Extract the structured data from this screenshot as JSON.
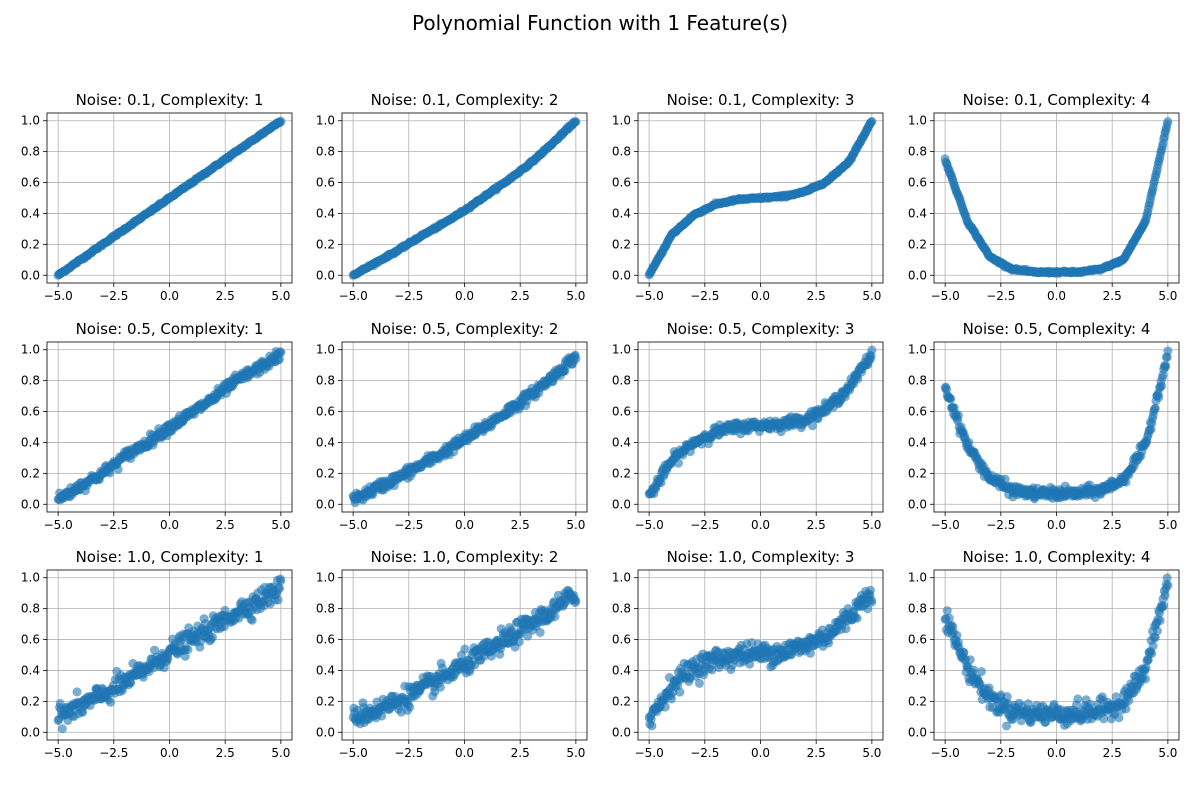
{
  "figure": {
    "title": "Polynomial Function with 1 Feature(s)"
  },
  "style": {
    "point_color": "#1f77b4",
    "grid_color": "#b0b0b0",
    "axis_color": "#000000"
  },
  "chart_data": [
    {
      "type": "scatter",
      "title": "Noise: 0.1, Complexity: 1",
      "noise": 0.1,
      "complexity": 1,
      "xlim": [
        -5.5,
        5.5
      ],
      "ylim": [
        -0.05,
        1.05
      ],
      "xticks": [
        -5.0,
        -2.5,
        0.0,
        2.5,
        5.0
      ],
      "xticklabels": [
        "−5.0",
        "−2.5",
        "0.0",
        "2.5",
        "5.0"
      ],
      "yticks": [
        0.0,
        0.2,
        0.4,
        0.6,
        0.8,
        1.0
      ],
      "yticklabels": [
        "0.0",
        "0.2",
        "0.4",
        "0.6",
        "0.8",
        "1.0"
      ],
      "grid": true,
      "x": [
        -5.0,
        -4.0,
        -3.0,
        -2.0,
        -1.0,
        0.0,
        1.0,
        2.0,
        3.0,
        4.0,
        5.0
      ],
      "y": [
        0.0,
        0.1,
        0.2,
        0.3,
        0.4,
        0.5,
        0.6,
        0.7,
        0.8,
        0.9,
        1.0
      ]
    },
    {
      "type": "scatter",
      "title": "Noise: 0.1, Complexity: 2",
      "noise": 0.1,
      "complexity": 2,
      "xlim": [
        -5.5,
        5.5
      ],
      "ylim": [
        -0.05,
        1.05
      ],
      "xticks": [
        -5.0,
        -2.5,
        0.0,
        2.5,
        5.0
      ],
      "xticklabels": [
        "−5.0",
        "−2.5",
        "0.0",
        "2.5",
        "5.0"
      ],
      "yticks": [
        0.0,
        0.2,
        0.4,
        0.6,
        0.8,
        1.0
      ],
      "yticklabels": [
        "0.0",
        "0.2",
        "0.4",
        "0.6",
        "0.8",
        "1.0"
      ],
      "grid": true,
      "x": [
        -5.0,
        -4.0,
        -3.0,
        -2.0,
        -1.0,
        0.0,
        1.0,
        2.0,
        3.0,
        4.0,
        5.0
      ],
      "y": [
        0.0,
        0.08,
        0.16,
        0.25,
        0.33,
        0.42,
        0.52,
        0.62,
        0.73,
        0.86,
        1.0
      ]
    },
    {
      "type": "scatter",
      "title": "Noise: 0.1, Complexity: 3",
      "noise": 0.1,
      "complexity": 3,
      "xlim": [
        -5.5,
        5.5
      ],
      "ylim": [
        -0.05,
        1.05
      ],
      "xticks": [
        -5.0,
        -2.5,
        0.0,
        2.5,
        5.0
      ],
      "xticklabels": [
        "−5.0",
        "−2.5",
        "0.0",
        "2.5",
        "5.0"
      ],
      "yticks": [
        0.0,
        0.2,
        0.4,
        0.6,
        0.8,
        1.0
      ],
      "yticklabels": [
        "0.0",
        "0.2",
        "0.4",
        "0.6",
        "0.8",
        "1.0"
      ],
      "grid": true,
      "x": [
        -5.0,
        -4.0,
        -3.0,
        -2.0,
        -1.0,
        0.0,
        1.0,
        2.0,
        3.0,
        4.0,
        5.0
      ],
      "y": [
        0.0,
        0.26,
        0.39,
        0.46,
        0.49,
        0.5,
        0.51,
        0.54,
        0.61,
        0.74,
        1.0
      ]
    },
    {
      "type": "scatter",
      "title": "Noise: 0.1, Complexity: 4",
      "noise": 0.1,
      "complexity": 4,
      "xlim": [
        -5.5,
        5.5
      ],
      "ylim": [
        -0.05,
        1.05
      ],
      "xticks": [
        -5.0,
        -2.5,
        0.0,
        2.5,
        5.0
      ],
      "xticklabels": [
        "−5.0",
        "−2.5",
        "0.0",
        "2.5",
        "5.0"
      ],
      "yticks": [
        0.0,
        0.2,
        0.4,
        0.6,
        0.8,
        1.0
      ],
      "yticklabels": [
        "0.0",
        "0.2",
        "0.4",
        "0.6",
        "0.8",
        "1.0"
      ],
      "grid": true,
      "x": [
        -5.0,
        -4.0,
        -3.0,
        -2.0,
        -1.0,
        0.0,
        1.0,
        2.0,
        3.0,
        4.0,
        5.0
      ],
      "y": [
        0.75,
        0.35,
        0.12,
        0.04,
        0.02,
        0.02,
        0.02,
        0.04,
        0.1,
        0.35,
        1.0
      ]
    },
    {
      "type": "scatter",
      "title": "Noise: 0.5, Complexity: 1",
      "noise": 0.5,
      "complexity": 1,
      "xlim": [
        -5.5,
        5.5
      ],
      "ylim": [
        -0.05,
        1.05
      ],
      "xticks": [
        -5.0,
        -2.5,
        0.0,
        2.5,
        5.0
      ],
      "xticklabels": [
        "−5.0",
        "−2.5",
        "0.0",
        "2.5",
        "5.0"
      ],
      "yticks": [
        0.0,
        0.2,
        0.4,
        0.6,
        0.8,
        1.0
      ],
      "yticklabels": [
        "0.0",
        "0.2",
        "0.4",
        "0.6",
        "0.8",
        "1.0"
      ],
      "grid": true,
      "x": [
        -5.0,
        -4.0,
        -3.0,
        -2.0,
        -1.0,
        0.0,
        1.0,
        2.0,
        3.0,
        4.0,
        5.0
      ],
      "y": [
        0.03,
        0.12,
        0.2,
        0.31,
        0.4,
        0.5,
        0.59,
        0.69,
        0.8,
        0.88,
        0.97
      ]
    },
    {
      "type": "scatter",
      "title": "Noise: 0.5, Complexity: 2",
      "noise": 0.5,
      "complexity": 2,
      "xlim": [
        -5.5,
        5.5
      ],
      "ylim": [
        -0.05,
        1.05
      ],
      "xticks": [
        -5.0,
        -2.5,
        0.0,
        2.5,
        5.0
      ],
      "xticklabels": [
        "−5.0",
        "−2.5",
        "0.0",
        "2.5",
        "5.0"
      ],
      "yticks": [
        0.0,
        0.2,
        0.4,
        0.6,
        0.8,
        1.0
      ],
      "yticklabels": [
        "0.0",
        "0.2",
        "0.4",
        "0.6",
        "0.8",
        "1.0"
      ],
      "grid": true,
      "x": [
        -5.0,
        -4.0,
        -3.0,
        -2.0,
        -1.0,
        0.0,
        1.0,
        2.0,
        3.0,
        4.0,
        5.0
      ],
      "y": [
        0.03,
        0.1,
        0.17,
        0.25,
        0.33,
        0.42,
        0.51,
        0.61,
        0.71,
        0.83,
        0.96
      ]
    },
    {
      "type": "scatter",
      "title": "Noise: 0.5, Complexity: 3",
      "noise": 0.5,
      "complexity": 3,
      "xlim": [
        -5.5,
        5.5
      ],
      "ylim": [
        -0.05,
        1.05
      ],
      "xticks": [
        -5.0,
        -2.5,
        0.0,
        2.5,
        5.0
      ],
      "xticklabels": [
        "−5.0",
        "−2.5",
        "0.0",
        "2.5",
        "5.0"
      ],
      "yticks": [
        0.0,
        0.2,
        0.4,
        0.6,
        0.8,
        1.0
      ],
      "yticklabels": [
        "0.0",
        "0.2",
        "0.4",
        "0.6",
        "0.8",
        "1.0"
      ],
      "grid": true,
      "x": [
        -5.0,
        -4.0,
        -3.0,
        -2.0,
        -1.0,
        0.0,
        1.0,
        2.0,
        3.0,
        4.0,
        5.0
      ],
      "y": [
        0.05,
        0.28,
        0.4,
        0.47,
        0.5,
        0.51,
        0.52,
        0.55,
        0.62,
        0.76,
        0.97
      ]
    },
    {
      "type": "scatter",
      "title": "Noise: 0.5, Complexity: 4",
      "noise": 0.5,
      "complexity": 4,
      "xlim": [
        -5.5,
        5.5
      ],
      "ylim": [
        -0.05,
        1.05
      ],
      "xticks": [
        -5.0,
        -2.5,
        0.0,
        2.5,
        5.0
      ],
      "xticklabels": [
        "−5.0",
        "−2.5",
        "0.0",
        "2.5",
        "5.0"
      ],
      "yticks": [
        0.0,
        0.2,
        0.4,
        0.6,
        0.8,
        1.0
      ],
      "yticklabels": [
        "0.0",
        "0.2",
        "0.4",
        "0.6",
        "0.8",
        "1.0"
      ],
      "grid": true,
      "x": [
        -5.0,
        -4.0,
        -3.0,
        -2.0,
        -1.0,
        0.0,
        1.0,
        2.0,
        3.0,
        4.0,
        5.0
      ],
      "y": [
        0.76,
        0.38,
        0.17,
        0.09,
        0.07,
        0.07,
        0.07,
        0.09,
        0.16,
        0.38,
        0.98
      ]
    },
    {
      "type": "scatter",
      "title": "Noise: 1.0, Complexity: 1",
      "noise": 1.0,
      "complexity": 1,
      "xlim": [
        -5.5,
        5.5
      ],
      "ylim": [
        -0.05,
        1.05
      ],
      "xticks": [
        -5.0,
        -2.5,
        0.0,
        2.5,
        5.0
      ],
      "xticklabels": [
        "−5.0",
        "−2.5",
        "0.0",
        "2.5",
        "5.0"
      ],
      "yticks": [
        0.0,
        0.2,
        0.4,
        0.6,
        0.8,
        1.0
      ],
      "yticklabels": [
        "0.0",
        "0.2",
        "0.4",
        "0.6",
        "0.8",
        "1.0"
      ],
      "grid": true,
      "x": [
        -5.0,
        -4.0,
        -3.0,
        -2.0,
        -1.0,
        0.0,
        1.0,
        2.0,
        3.0,
        4.0,
        5.0
      ],
      "y": [
        0.1,
        0.17,
        0.24,
        0.32,
        0.42,
        0.52,
        0.6,
        0.68,
        0.78,
        0.85,
        0.93
      ]
    },
    {
      "type": "scatter",
      "title": "Noise: 1.0, Complexity: 2",
      "noise": 1.0,
      "complexity": 2,
      "xlim": [
        -5.5,
        5.5
      ],
      "ylim": [
        -0.05,
        1.05
      ],
      "xticks": [
        -5.0,
        -2.5,
        0.0,
        2.5,
        5.0
      ],
      "xticklabels": [
        "−5.0",
        "−2.5",
        "0.0",
        "2.5",
        "5.0"
      ],
      "yticks": [
        0.0,
        0.2,
        0.4,
        0.6,
        0.8,
        1.0
      ],
      "yticklabels": [
        "0.0",
        "0.2",
        "0.4",
        "0.6",
        "0.8",
        "1.0"
      ],
      "grid": true,
      "x": [
        -5.0,
        -4.0,
        -3.0,
        -2.0,
        -1.0,
        0.0,
        1.0,
        2.0,
        3.0,
        4.0,
        5.0
      ],
      "y": [
        0.1,
        0.14,
        0.2,
        0.27,
        0.35,
        0.44,
        0.52,
        0.61,
        0.7,
        0.79,
        0.9
      ]
    },
    {
      "type": "scatter",
      "title": "Noise: 1.0, Complexity: 3",
      "noise": 1.0,
      "complexity": 3,
      "xlim": [
        -5.5,
        5.5
      ],
      "ylim": [
        -0.05,
        1.05
      ],
      "xticks": [
        -5.0,
        -2.5,
        0.0,
        2.5,
        5.0
      ],
      "xticklabels": [
        "−5.0",
        "−2.5",
        "0.0",
        "2.5",
        "5.0"
      ],
      "yticks": [
        0.0,
        0.2,
        0.4,
        0.6,
        0.8,
        1.0
      ],
      "yticklabels": [
        "0.0",
        "0.2",
        "0.4",
        "0.6",
        "0.8",
        "1.0"
      ],
      "grid": true,
      "x": [
        -5.0,
        -4.0,
        -3.0,
        -2.0,
        -1.0,
        0.0,
        1.0,
        2.0,
        3.0,
        4.0,
        5.0
      ],
      "y": [
        0.08,
        0.3,
        0.42,
        0.47,
        0.5,
        0.51,
        0.52,
        0.56,
        0.63,
        0.75,
        0.92
      ]
    },
    {
      "type": "scatter",
      "title": "Noise: 1.0, Complexity: 4",
      "noise": 1.0,
      "complexity": 4,
      "xlim": [
        -5.5,
        5.5
      ],
      "ylim": [
        -0.05,
        1.05
      ],
      "xticks": [
        -5.0,
        -2.5,
        0.0,
        2.5,
        5.0
      ],
      "xticklabels": [
        "−5.0",
        "−2.5",
        "0.0",
        "2.5",
        "5.0"
      ],
      "yticks": [
        0.0,
        0.2,
        0.4,
        0.6,
        0.8,
        1.0
      ],
      "yticklabels": [
        "0.0",
        "0.2",
        "0.4",
        "0.6",
        "0.8",
        "1.0"
      ],
      "grid": true,
      "x": [
        -5.0,
        -4.0,
        -3.0,
        -2.0,
        -1.0,
        0.0,
        1.0,
        2.0,
        3.0,
        4.0,
        5.0
      ],
      "y": [
        0.75,
        0.42,
        0.22,
        0.14,
        0.12,
        0.12,
        0.12,
        0.14,
        0.2,
        0.4,
        0.97
      ]
    }
  ]
}
